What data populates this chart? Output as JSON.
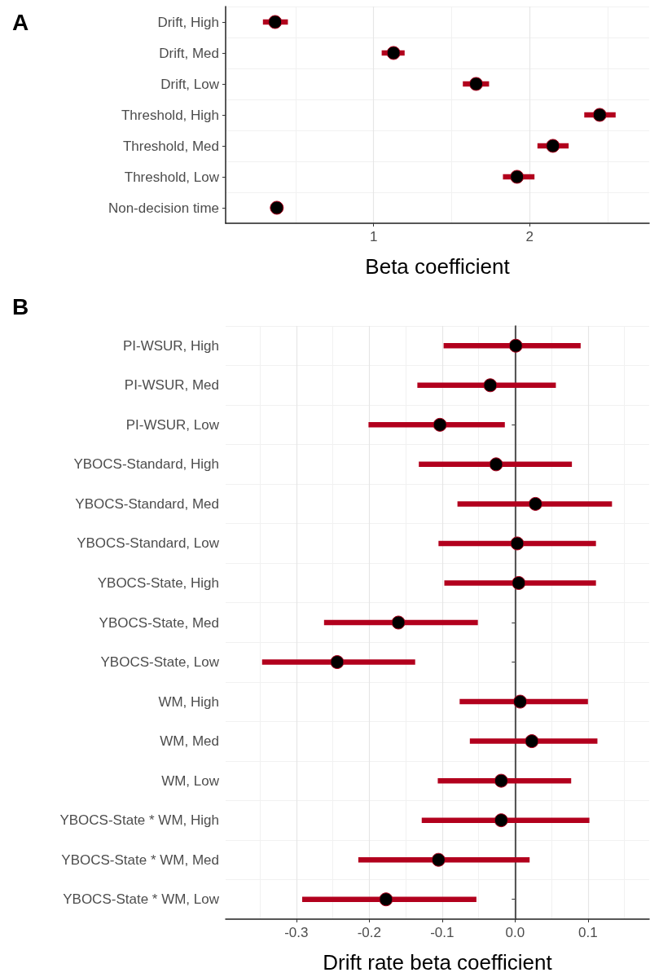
{
  "chart_data": [
    {
      "type": "scatter",
      "title": "A",
      "orientation": "horizontal",
      "xlabel": "Beta coefficient",
      "categories": [
        "Drift, High",
        "Drift, Med",
        "Drift, Low",
        "Threshold, High",
        "Threshold, Med",
        "Threshold, Low",
        "Non-decision time"
      ],
      "values": [
        0.369,
        1.128,
        1.657,
        2.449,
        2.149,
        1.919,
        0.38
      ],
      "errors": [
        [
          0.291,
          0.451
        ],
        [
          1.052,
          1.199
        ],
        [
          1.572,
          1.74
        ],
        [
          2.35,
          2.551
        ],
        [
          2.05,
          2.25
        ],
        [
          1.829,
          2.031
        ],
        null
      ],
      "color": "#000000",
      "marker": "circle",
      "grid": true,
      "xlim": [
        0.052,
        2.766
      ],
      "xticks": [
        1,
        2
      ]
    },
    {
      "type": "scatter",
      "title": "B",
      "orientation": "horizontal",
      "xlabel": "Drift rate beta coefficient",
      "categories": [
        "PI-WSUR, High",
        "PI-WSUR, Med",
        "PI-WSUR, Low",
        "YBOCS-Standard, High",
        "YBOCS-Standard, Med",
        "YBOCS-Standard, Low",
        "YBOCS-State, High",
        "YBOCS-State, Med",
        "YBOCS-State, Low",
        "WM, High",
        "WM, Med",
        "WM, Low",
        "YBOCS-State * WM, High",
        "YBOCS-State * WM, Med",
        "YBOCS-State * WM, Low"
      ],
      "values": [
        0.001,
        -0.034,
        -0.103,
        -0.026,
        0.028,
        0.003,
        0.005,
        -0.16,
        -0.244,
        0.007,
        0.023,
        -0.019,
        -0.019,
        -0.105,
        -0.177
      ],
      "errors": [
        [
          -0.098,
          0.09
        ],
        [
          -0.134,
          0.056
        ],
        [
          -0.201,
          -0.014
        ],
        [
          -0.132,
          0.078
        ],
        [
          -0.079,
          0.133
        ],
        [
          -0.105,
          0.111
        ],
        [
          -0.097,
          0.111
        ],
        [
          -0.262,
          -0.051
        ],
        [
          -0.347,
          -0.137
        ],
        [
          -0.076,
          0.1
        ],
        [
          -0.062,
          0.113
        ],
        [
          -0.106,
          0.077
        ],
        [
          -0.128,
          0.102
        ],
        [
          -0.215,
          0.02
        ],
        [
          -0.292,
          -0.053
        ]
      ],
      "color": "#000000",
      "marker": "circle",
      "grid": true,
      "xlim": [
        -0.397,
        0.184
      ],
      "xticks": [
        -0.3,
        -0.2,
        -0.1,
        {
          "value": 0,
          "label": "0.0"
        },
        0.1
      ],
      "ref_lines": [
        {
          "axis": "x",
          "value": 0,
          "color": "#555555"
        }
      ]
    }
  ]
}
